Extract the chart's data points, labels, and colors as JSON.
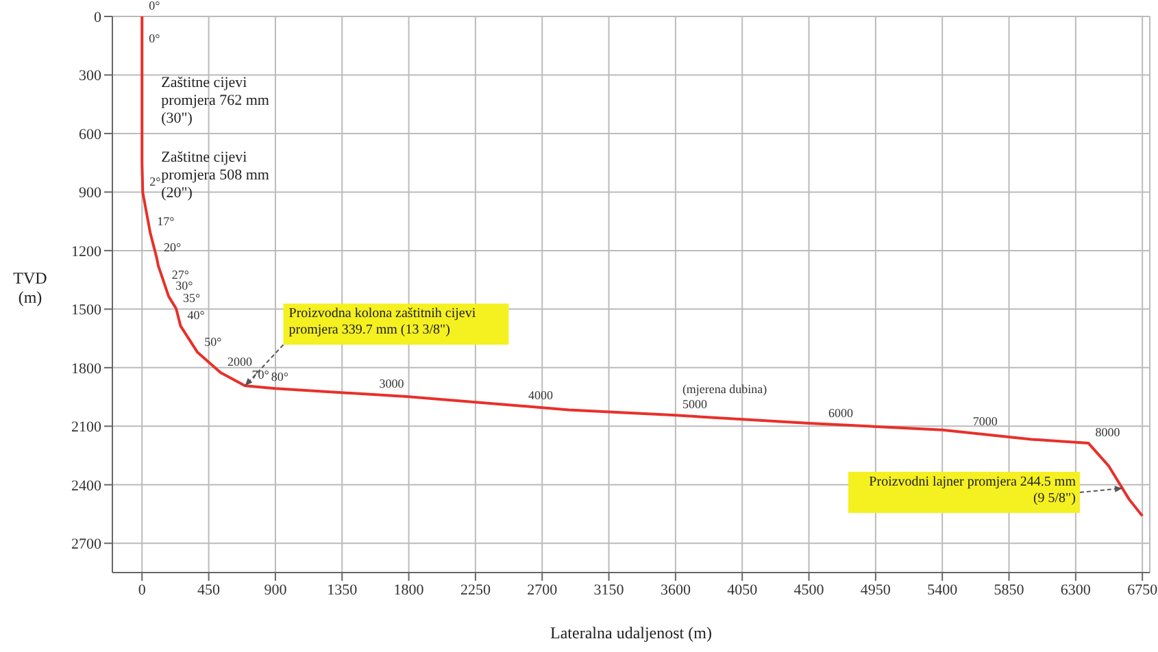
{
  "chart_data": {
    "type": "line",
    "xlabel": "Lateralna udaljenost (m)",
    "ylabel": "TVD (m)",
    "x": [
      0,
      0,
      0,
      5,
      55,
      100,
      110,
      180,
      230,
      260,
      375,
      530,
      695,
      900,
      1785,
      2880,
      3600,
      4500,
      5400,
      6000,
      6386,
      6523,
      6660,
      6750
    ],
    "series": [
      {
        "color": "#e8302a",
        "values": [
          0,
          300,
          750,
          902,
          1107,
          1240,
          1278,
          1435,
          1497,
          1586,
          1722,
          1825,
          1893,
          1907,
          1948,
          2016,
          2044,
          2085,
          2119,
          2167,
          2187,
          2304,
          2474,
          2560
        ]
      }
    ],
    "xlim": [
      -200,
      6800
    ],
    "xticks": [
      0,
      450,
      900,
      1350,
      1800,
      2250,
      2700,
      3150,
      3600,
      4050,
      4500,
      4950,
      5400,
      5850,
      6300,
      6750
    ],
    "ylim": [
      2850,
      0
    ],
    "yticks": [
      0,
      300,
      600,
      900,
      1200,
      1500,
      1800,
      2100,
      2400,
      2700
    ],
    "grid": true,
    "marker": "none",
    "line_style": "solid",
    "legend": false,
    "annotations": [
      {
        "text": "Zaštitne cijevi promjera 762 mm (30\")",
        "x": 0,
        "y": 300
      },
      {
        "text": "Zaštitne cijevi promjera 508 mm (20\")",
        "x": 0,
        "y": 750
      },
      {
        "text": "Proizvodna kolona zaštitnih cijevi promjera 339.7 mm (13 3/8\")",
        "x": 695,
        "y": 1893
      },
      {
        "text": "Proizvodni lajner promjera 244.5 mm (9 5/8\")",
        "x": 6615,
        "y": 2418
      },
      {
        "text": "0°",
        "x": 0,
        "y": 0
      },
      {
        "text": "0°",
        "x": 0,
        "y": 170
      },
      {
        "text": "2°",
        "x": 5,
        "y": 902
      },
      {
        "text": "17°",
        "x": 55,
        "y": 1107
      },
      {
        "text": "20°",
        "x": 100,
        "y": 1240
      },
      {
        "text": "27°",
        "x": 155,
        "y": 1380
      },
      {
        "text": "30°",
        "x": 180,
        "y": 1435
      },
      {
        "text": "35°",
        "x": 230,
        "y": 1497
      },
      {
        "text": "40°",
        "x": 260,
        "y": 1586
      },
      {
        "text": "50°",
        "x": 375,
        "y": 1722
      },
      {
        "text": "2000",
        "x": 530,
        "y": 1825
      },
      {
        "text": "70°",
        "x": 695,
        "y": 1893
      },
      {
        "text": "80°",
        "x": 825,
        "y": 1902
      },
      {
        "text": "3000",
        "x": 1555,
        "y": 1937
      },
      {
        "text": "4000",
        "x": 2560,
        "y": 1996
      },
      {
        "text": "(mjerena dubina)",
        "x": 3600,
        "y": 2044
      },
      {
        "text": "5000",
        "x": 3600,
        "y": 2044
      },
      {
        "text": "6000",
        "x": 4585,
        "y": 2088
      },
      {
        "text": "7000",
        "x": 5560,
        "y": 2132
      },
      {
        "text": "8000",
        "x": 6386,
        "y": 2187
      }
    ]
  }
}
